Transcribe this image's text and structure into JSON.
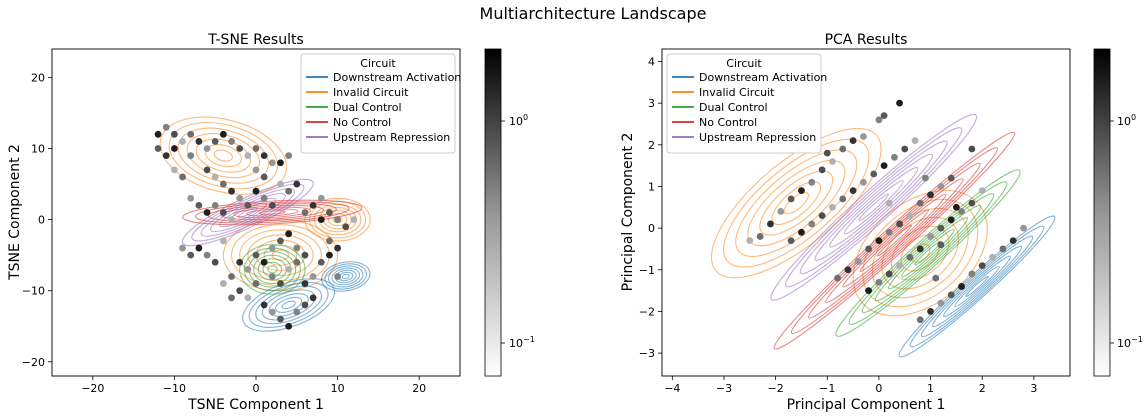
{
  "figure": {
    "title": "Multiarchitecture Landscape"
  },
  "colors": {
    "Downstream Activation": "#1f77b4",
    "Invalid Circuit": "#ff7f0e",
    "Dual Control": "#2ca02c",
    "No Control": "#d62728",
    "Upstream Repression": "#9467bd"
  },
  "legend": {
    "title": "Circuit",
    "entries": [
      "Downstream Activation",
      "Invalid Circuit",
      "Dual Control",
      "No Control",
      "Upstream Repression"
    ]
  },
  "colorbar": {
    "scale": "log",
    "cmap": "Greys",
    "ticks": [
      {
        "base": "10",
        "exp": "0"
      },
      {
        "base": "10",
        "exp": "−1"
      }
    ]
  },
  "chart_data": [
    {
      "type": "scatter",
      "title": "T-SNE Results",
      "xlabel": "TSNE Component 1",
      "ylabel": "TSNE Component 2",
      "xlim": [
        -25,
        25
      ],
      "ylim": [
        -22,
        24
      ],
      "xticks": [
        -20,
        -10,
        0,
        10,
        20
      ],
      "yticks": [
        -20,
        -10,
        0,
        10,
        20
      ],
      "legend_position": "upper right",
      "density_contours": [
        {
          "series": "Invalid Circuit",
          "center": [
            -4,
            9
          ],
          "spread": [
            8,
            5
          ],
          "angle_deg": -15
        },
        {
          "series": "Invalid Circuit",
          "center": [
            3,
            -5
          ],
          "spread": [
            7,
            5
          ],
          "angle_deg": 0
        },
        {
          "series": "Invalid Circuit",
          "center": [
            10,
            0
          ],
          "spread": [
            4,
            3
          ],
          "angle_deg": 0
        },
        {
          "series": "Upstream Repression",
          "center": [
            -1,
            1
          ],
          "spread": [
            9,
            2
          ],
          "angle_deg": 25
        },
        {
          "series": "No Control",
          "center": [
            2,
            1
          ],
          "spread": [
            11,
            1.6
          ],
          "angle_deg": 3
        },
        {
          "series": "Dual Control",
          "center": [
            2,
            -7
          ],
          "spread": [
            4,
            3.5
          ],
          "angle_deg": 0
        },
        {
          "series": "Downstream Activation",
          "center": [
            4,
            -12
          ],
          "spread": [
            6,
            3
          ],
          "angle_deg": 20
        },
        {
          "series": "Downstream Activation",
          "center": [
            11,
            -8
          ],
          "spread": [
            3,
            2
          ],
          "angle_deg": 10
        }
      ],
      "points": [
        [
          -12,
          12
        ],
        [
          -11,
          13
        ],
        [
          -10,
          12
        ],
        [
          -9,
          11
        ],
        [
          -8,
          12
        ],
        [
          -7,
          11
        ],
        [
          -6,
          10
        ],
        [
          -5,
          11
        ],
        [
          -4,
          12
        ],
        [
          -3,
          11
        ],
        [
          -2,
          10
        ],
        [
          -1,
          9
        ],
        [
          0,
          10
        ],
        [
          1,
          9
        ],
        [
          2,
          8
        ],
        [
          -12,
          10
        ],
        [
          -10,
          10
        ],
        [
          -8,
          9
        ],
        [
          -6,
          7
        ],
        [
          -5,
          6
        ],
        [
          -4,
          5
        ],
        [
          -3,
          4
        ],
        [
          -2,
          3
        ],
        [
          -1,
          2
        ],
        [
          0,
          4
        ],
        [
          1,
          3
        ],
        [
          2,
          2
        ],
        [
          3,
          5
        ],
        [
          4,
          4
        ],
        [
          5,
          5
        ],
        [
          -8,
          3
        ],
        [
          -7,
          2
        ],
        [
          -6,
          1
        ],
        [
          -5,
          2
        ],
        [
          -4,
          1
        ],
        [
          -3,
          0
        ],
        [
          6,
          1
        ],
        [
          7,
          2
        ],
        [
          8,
          3
        ],
        [
          9,
          1
        ],
        [
          8,
          0
        ],
        [
          10,
          0
        ],
        [
          11,
          -1
        ],
        [
          12,
          0
        ],
        [
          9,
          -3
        ],
        [
          10,
          -4
        ],
        [
          -9,
          -4
        ],
        [
          -8,
          -5
        ],
        [
          -7,
          -4
        ],
        [
          -6,
          -5
        ],
        [
          -5,
          -6
        ],
        [
          -4,
          -3
        ],
        [
          -3,
          -8
        ],
        [
          -2,
          -6
        ],
        [
          -1,
          -7
        ],
        [
          0,
          -5
        ],
        [
          1,
          -6
        ],
        [
          2,
          -8
        ],
        [
          3,
          -9
        ],
        [
          4,
          -7
        ],
        [
          5,
          -6
        ],
        [
          6,
          -9
        ],
        [
          7,
          -8
        ],
        [
          8,
          -6
        ],
        [
          9,
          -5
        ],
        [
          10,
          -8
        ],
        [
          -2,
          -10
        ],
        [
          -1,
          -11
        ],
        [
          0,
          -9
        ],
        [
          1,
          -12
        ],
        [
          2,
          -13
        ],
        [
          3,
          -14
        ],
        [
          4,
          -15
        ],
        [
          5,
          -13
        ],
        [
          6,
          -12
        ],
        [
          -4,
          -9
        ],
        [
          -3,
          -11
        ],
        [
          7,
          -11
        ],
        [
          2,
          -4
        ],
        [
          3,
          -3
        ],
        [
          4,
          -2
        ],
        [
          5,
          -4
        ],
        [
          6,
          -5
        ],
        [
          -10,
          7
        ],
        [
          -9,
          6
        ],
        [
          -11,
          9
        ],
        [
          0,
          7
        ],
        [
          1,
          6
        ],
        [
          3,
          8
        ],
        [
          4,
          9
        ]
      ]
    },
    {
      "type": "scatter",
      "title": "PCA Results",
      "xlabel": "Principal Component 1",
      "ylabel": "Principal Component 2",
      "xlim": [
        -4.2,
        3.7
      ],
      "ylim": [
        -3.55,
        4.3
      ],
      "xticks": [
        -4,
        -3,
        -2,
        -1,
        0,
        1,
        2,
        3
      ],
      "yticks": [
        -3,
        -2,
        -1,
        0,
        1,
        2,
        3,
        4
      ],
      "legend_position": "upper left",
      "density_contours": [
        {
          "series": "Invalid Circuit",
          "center": [
            -1.6,
            0.6
          ],
          "spread": [
            2.2,
            0.9
          ],
          "angle_deg": 40
        },
        {
          "series": "Invalid Circuit",
          "center": [
            0.8,
            -0.6
          ],
          "spread": [
            1.6,
            1.1
          ],
          "angle_deg": 40
        },
        {
          "series": "Upstream Repression",
          "center": [
            -0.1,
            0.5
          ],
          "spread": [
            2.9,
            0.35
          ],
          "angle_deg": 42
        },
        {
          "series": "No Control",
          "center": [
            0.3,
            -0.3
          ],
          "spread": [
            3.4,
            0.28
          ],
          "angle_deg": 42
        },
        {
          "series": "Dual Control",
          "center": [
            0.95,
            -0.6
          ],
          "spread": [
            2.6,
            0.3
          ],
          "angle_deg": 42
        },
        {
          "series": "Downstream Activation",
          "center": [
            1.9,
            -1.4
          ],
          "spread": [
            2.2,
            0.25
          ],
          "angle_deg": 42
        }
      ],
      "points": [
        [
          0.1,
          2.7
        ],
        [
          0.4,
          3.0
        ],
        [
          0.0,
          2.6
        ],
        [
          1.8,
          1.9
        ],
        [
          -2.5,
          -0.3
        ],
        [
          -2.3,
          -0.2
        ],
        [
          -2.1,
          0.1
        ],
        [
          -1.9,
          0.4
        ],
        [
          -1.7,
          0.7
        ],
        [
          -1.5,
          0.9
        ],
        [
          -1.3,
          1.1
        ],
        [
          -1.1,
          1.4
        ],
        [
          -0.9,
          1.6
        ],
        [
          -0.7,
          1.9
        ],
        [
          -0.5,
          2.1
        ],
        [
          -0.3,
          2.2
        ],
        [
          -1.7,
          -0.3
        ],
        [
          -1.5,
          -0.1
        ],
        [
          -1.3,
          0.1
        ],
        [
          -1.1,
          0.3
        ],
        [
          -0.9,
          0.5
        ],
        [
          -0.7,
          0.7
        ],
        [
          -0.5,
          0.9
        ],
        [
          -0.3,
          1.1
        ],
        [
          -0.1,
          1.3
        ],
        [
          0.1,
          1.5
        ],
        [
          0.3,
          1.7
        ],
        [
          0.5,
          1.9
        ],
        [
          0.7,
          2.1
        ],
        [
          -0.8,
          -1.2
        ],
        [
          -0.6,
          -1.0
        ],
        [
          -0.4,
          -0.8
        ],
        [
          -0.2,
          -0.5
        ],
        [
          0.0,
          -0.3
        ],
        [
          0.2,
          -0.1
        ],
        [
          0.4,
          0.1
        ],
        [
          0.6,
          0.3
        ],
        [
          0.8,
          0.6
        ],
        [
          1.0,
          0.8
        ],
        [
          1.2,
          1.0
        ],
        [
          1.4,
          1.2
        ],
        [
          -0.2,
          -1.5
        ],
        [
          0.0,
          -1.3
        ],
        [
          0.2,
          -1.1
        ],
        [
          0.4,
          -0.9
        ],
        [
          0.6,
          -0.7
        ],
        [
          0.8,
          -0.5
        ],
        [
          1.0,
          -0.2
        ],
        [
          1.2,
          0.0
        ],
        [
          1.4,
          0.2
        ],
        [
          1.6,
          0.4
        ],
        [
          1.8,
          0.6
        ],
        [
          2.0,
          0.9
        ],
        [
          0.8,
          -2.2
        ],
        [
          1.0,
          -2.0
        ],
        [
          1.2,
          -1.8
        ],
        [
          1.4,
          -1.6
        ],
        [
          1.6,
          -1.4
        ],
        [
          1.8,
          -1.1
        ],
        [
          2.0,
          -0.9
        ],
        [
          2.2,
          -0.7
        ],
        [
          2.4,
          -0.5
        ],
        [
          2.6,
          -0.3
        ],
        [
          2.8,
          0.0
        ],
        [
          1.2,
          -0.4
        ],
        [
          1.5,
          0.5
        ],
        [
          0.9,
          1.2
        ],
        [
          -1.0,
          1.8
        ],
        [
          0.2,
          0.6
        ],
        [
          1.1,
          -1.2
        ]
      ]
    }
  ]
}
